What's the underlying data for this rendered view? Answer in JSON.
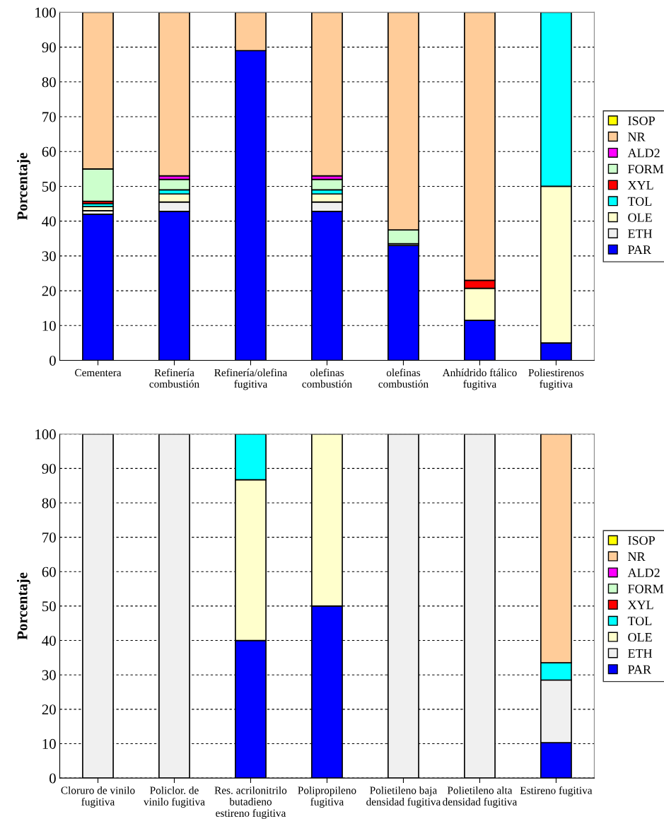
{
  "chart_data": [
    {
      "type": "bar",
      "stacked": true,
      "ylabel": "Porcentaje",
      "ylim": [
        0,
        100
      ],
      "yticks": [
        0,
        10,
        20,
        30,
        40,
        50,
        60,
        70,
        80,
        90,
        100
      ],
      "grid": "y",
      "legend": "right",
      "categories": [
        "Cementera",
        "Refinería\ncombustión",
        "Refinería/olefina\nfugitiva",
        "olefinas\ncombustión",
        "olefinas\ncombustión",
        "Anhídrido ftálico\nfugitiva",
        "Poliestirenos\nfugitiva"
      ],
      "series": [
        {
          "name": "PAR",
          "color": "#0000ff",
          "values": [
            42,
            42.8,
            89,
            42.8,
            33,
            11.5,
            5
          ]
        },
        {
          "name": "ETH",
          "color": "#f0f0f0",
          "values": [
            1,
            2.7,
            0,
            2.7,
            0.5,
            0,
            0
          ]
        },
        {
          "name": "OLE",
          "color": "#ffffcc",
          "values": [
            1.2,
            2.3,
            0,
            2.3,
            0,
            9.2,
            45
          ]
        },
        {
          "name": "TOL",
          "color": "#00ffff",
          "values": [
            0.8,
            1.2,
            0,
            1.2,
            0,
            0,
            50
          ]
        },
        {
          "name": "XYL",
          "color": "#ff0000",
          "values": [
            0.7,
            0,
            null,
            0,
            0,
            2.3,
            0
          ]
        },
        {
          "name": "FORM",
          "color": "#ccffcc",
          "values": [
            9.3,
            3,
            0,
            3,
            4,
            0,
            0
          ]
        },
        {
          "name": "ALD2",
          "color": "#ff00ff",
          "values": [
            0,
            1,
            0,
            1,
            0,
            0,
            0
          ]
        },
        {
          "name": "NR",
          "color": "#ffcc99",
          "values": [
            45,
            47,
            11,
            47,
            62.5,
            77,
            0
          ]
        },
        {
          "name": "ISOP",
          "color": "#ffff00",
          "values": [
            0,
            0,
            0,
            0,
            0,
            0,
            0
          ]
        }
      ]
    },
    {
      "type": "bar",
      "stacked": true,
      "ylabel": "Porcentaje",
      "ylim": [
        0,
        100
      ],
      "yticks": [
        0,
        10,
        20,
        30,
        40,
        50,
        60,
        70,
        80,
        90,
        100
      ],
      "grid": "y",
      "legend": "right",
      "categories": [
        "Cloruro de vinilo\nfugitiva",
        "Policlor. de\nvinilo fugitiva",
        "Res. acrilonitrilo\nbutadieno\nestireno fugitiva",
        "Polipropileno\nfugitiva",
        "Polietileno baja\ndensidad fugitiva",
        "Polietileno alta\ndensidad fugitiva",
        "Estireno fugitiva"
      ],
      "series": [
        {
          "name": "PAR",
          "color": "#0000ff",
          "values": [
            0,
            0,
            40,
            50,
            0,
            0,
            10.3
          ]
        },
        {
          "name": "ETH",
          "color": "#f0f0f0",
          "values": [
            100,
            100,
            0,
            0,
            100,
            100,
            18.2
          ]
        },
        {
          "name": "OLE",
          "color": "#ffffcc",
          "values": [
            0,
            0,
            46.7,
            50,
            0,
            0,
            0
          ]
        },
        {
          "name": "TOL",
          "color": "#00ffff",
          "values": [
            0,
            0,
            13.3,
            0,
            0,
            0,
            5
          ]
        },
        {
          "name": "XYL",
          "color": "#ff0000",
          "values": [
            0,
            0,
            0,
            0,
            0,
            0,
            null
          ]
        },
        {
          "name": "FORM",
          "color": "#ccffcc",
          "values": [
            0,
            0,
            0,
            0,
            0,
            0,
            0
          ]
        },
        {
          "name": "ALD2",
          "color": "#ff00ff",
          "values": [
            0,
            0,
            0,
            0,
            0,
            0,
            0
          ]
        },
        {
          "name": "NR",
          "color": "#ffcc99",
          "values": [
            0,
            0,
            0,
            0,
            0,
            0,
            66.5
          ]
        },
        {
          "name": "ISOP",
          "color": "#ffff00",
          "values": [
            0,
            0,
            0,
            0,
            0,
            0,
            0
          ]
        }
      ]
    }
  ]
}
